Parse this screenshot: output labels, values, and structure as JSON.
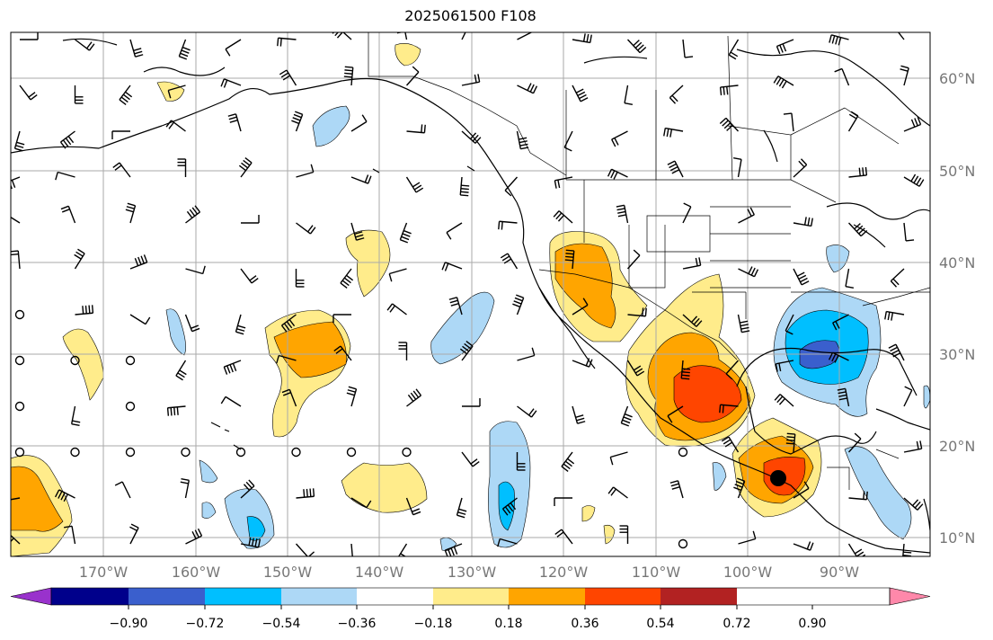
{
  "title": "2025061500 F108",
  "map": {
    "lat_labels": [
      "60°N",
      "50°N",
      "40°N",
      "30°N",
      "20°N",
      "10°N"
    ],
    "lon_labels": [
      "170°W",
      "160°W",
      "150°W",
      "140°W",
      "130°W",
      "120°W",
      "110°W",
      "100°W",
      "90°W"
    ],
    "marker": {
      "label": "",
      "lon": -96,
      "lat": 16.5
    }
  },
  "colorbar": {
    "ticks": [
      "−0.90",
      "−0.72",
      "−0.54",
      "−0.36",
      "−0.18",
      "0.18",
      "0.36",
      "0.54",
      "0.72",
      "0.90"
    ],
    "colors": [
      "#9932cc",
      "#00008b",
      "#3a5fcd",
      "#00bfff",
      "#add8f6",
      "#ffffff",
      "#ffec8b",
      "#ffa500",
      "#ff4500",
      "#b22222",
      "#ff88aa"
    ]
  }
}
